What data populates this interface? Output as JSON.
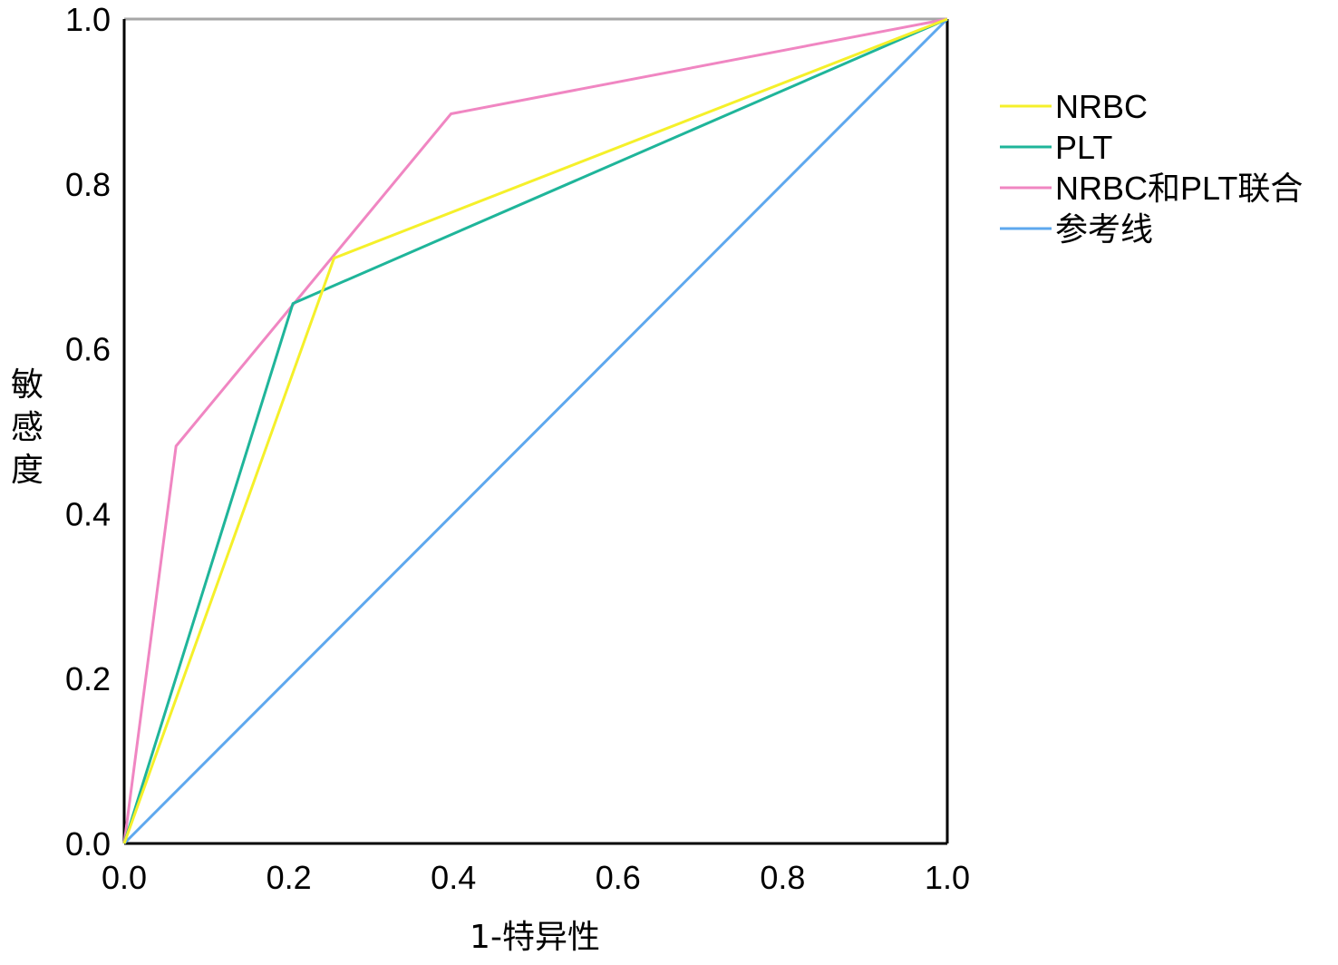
{
  "chart_data": {
    "type": "line",
    "title": "",
    "xlabel": "1-特异性",
    "ylabel": "敏感度",
    "xlim": [
      0,
      1
    ],
    "ylim": [
      0,
      1
    ],
    "x_ticks": [
      "0.0",
      "0.2",
      "0.4",
      "0.6",
      "0.8",
      "1.0"
    ],
    "y_ticks": [
      "0.0",
      "0.2",
      "0.4",
      "0.6",
      "0.8",
      "1.0"
    ],
    "grid": false,
    "legend_position": "right",
    "series": [
      {
        "name": "NRBC",
        "color": "#f5f02a",
        "points": [
          [
            0,
            0
          ],
          [
            0.255,
            0.71
          ],
          [
            1,
            1
          ]
        ]
      },
      {
        "name": "PLT",
        "color": "#1fb59a",
        "points": [
          [
            0,
            0
          ],
          [
            0.205,
            0.655
          ],
          [
            1,
            1
          ]
        ]
      },
      {
        "name": "NRBC和PLT联合",
        "color": "#f086c2",
        "points": [
          [
            0,
            0
          ],
          [
            0.063,
            0.482
          ],
          [
            0.397,
            0.885
          ],
          [
            1,
            1
          ]
        ]
      },
      {
        "name": "参考线",
        "color": "#5ea8ee",
        "points": [
          [
            0,
            0
          ],
          [
            1,
            1
          ]
        ]
      }
    ]
  }
}
